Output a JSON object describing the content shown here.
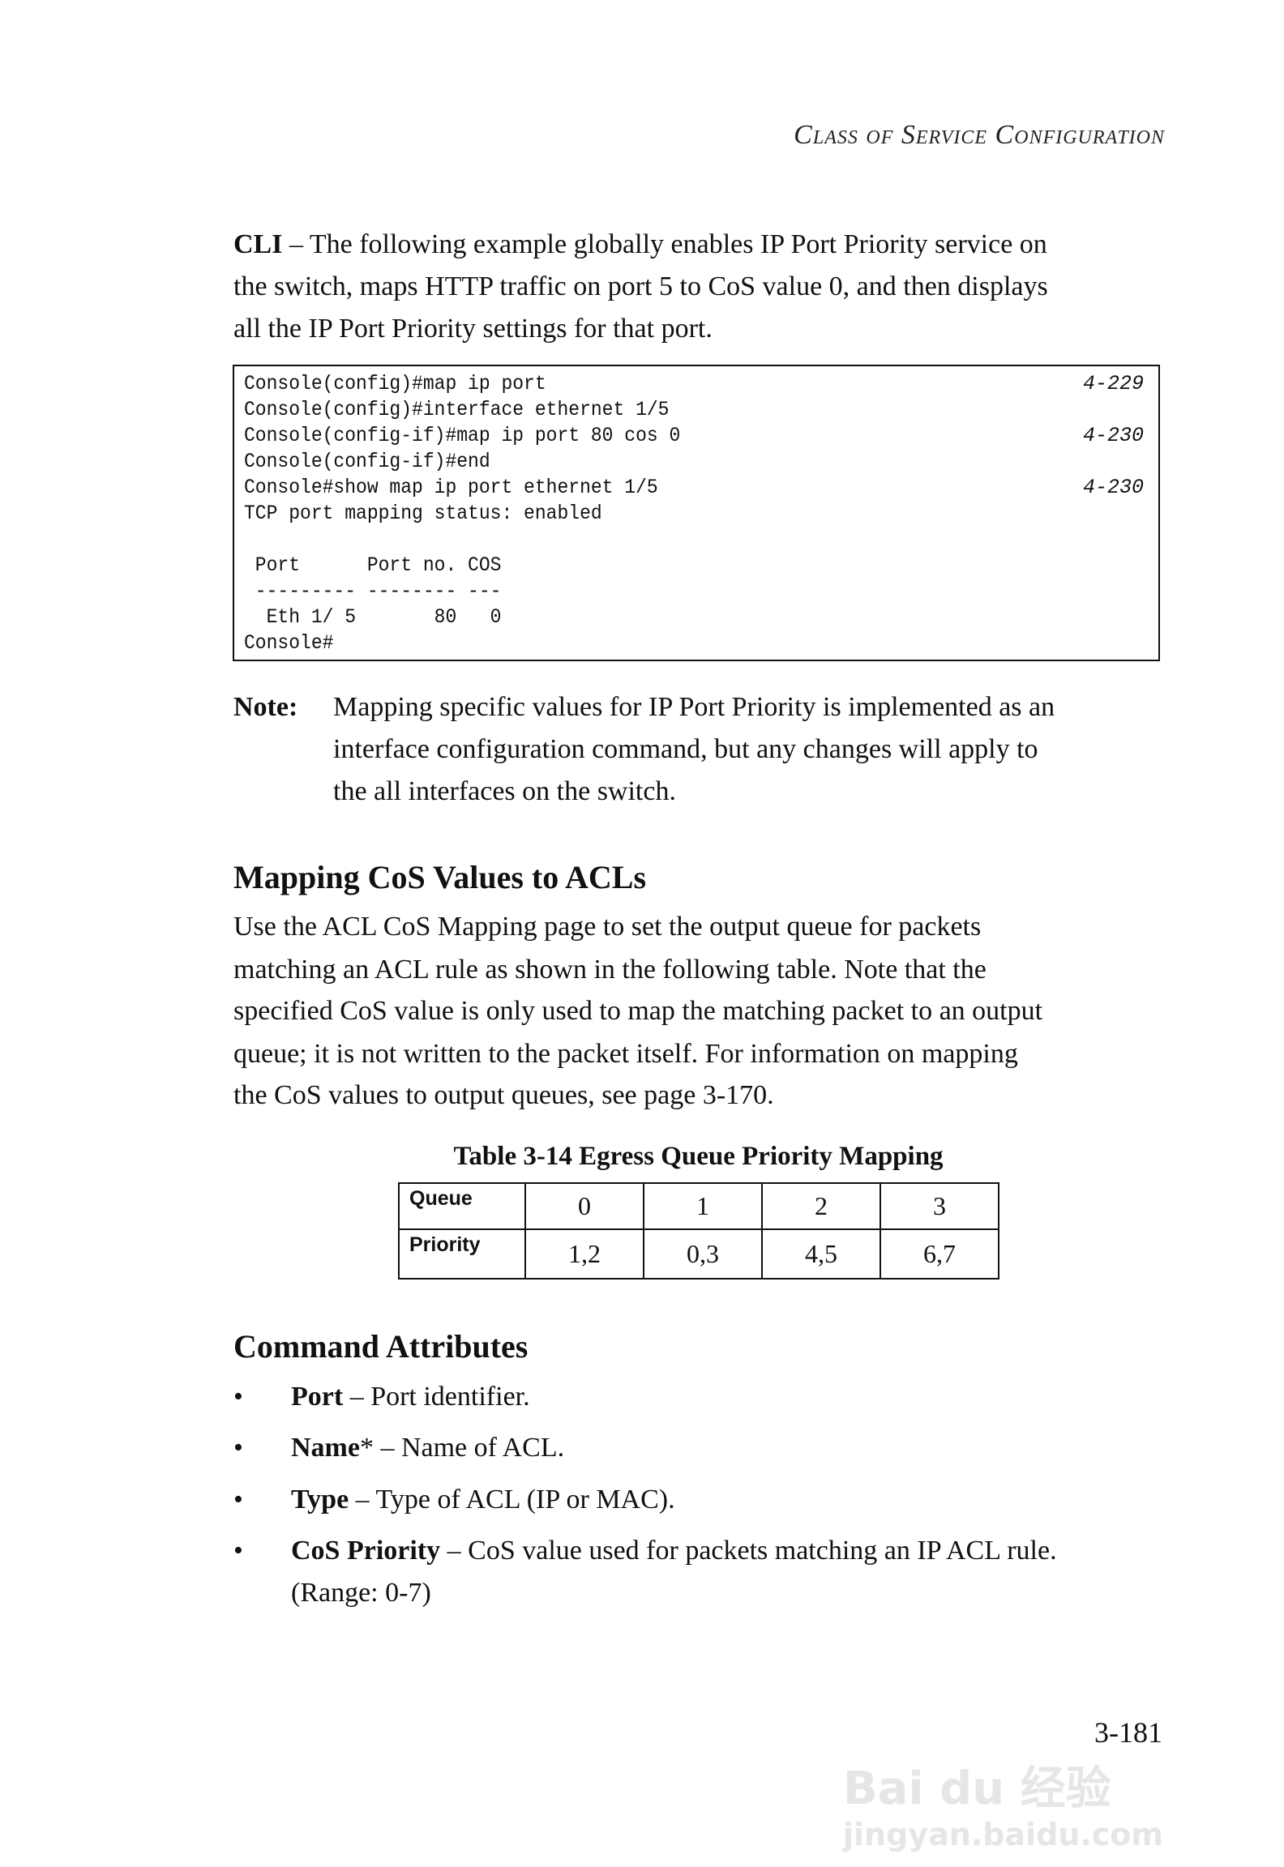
{
  "header": {
    "title": "Class of Service Configuration"
  },
  "cli_paragraph": {
    "label": "CLI",
    "lines": [
      " – The following example globally enables IP Port Priority service on",
      "the switch, maps HTTP traffic on port 5 to CoS value 0, and then displays",
      "all the IP Port Priority settings for that port."
    ]
  },
  "code_block": {
    "lines": [
      {
        "text": "Console(config)#map ip port",
        "ref": "4-229"
      },
      {
        "text": "Console(config)#interface ethernet 1/5",
        "ref": ""
      },
      {
        "text": "Console(config-if)#map ip port 80 cos 0",
        "ref": "4-230"
      },
      {
        "text": "Console(config-if)#end",
        "ref": ""
      },
      {
        "text": "Console#show map ip port ethernet 1/5",
        "ref": "4-230"
      },
      {
        "text": "TCP port mapping status: enabled",
        "ref": ""
      },
      {
        "text": "",
        "ref": ""
      },
      {
        "text": " Port      Port no. COS",
        "ref": ""
      },
      {
        "text": " --------- -------- ---",
        "ref": ""
      },
      {
        "text": "  Eth 1/ 5       80   0",
        "ref": ""
      },
      {
        "text": "Console#",
        "ref": ""
      }
    ]
  },
  "note": {
    "label": "Note:",
    "lines": [
      "Mapping specific values for IP Port Priority is implemented as an",
      "interface configuration command, but any changes will apply to",
      "the all interfaces on the switch."
    ]
  },
  "section": {
    "title": "Mapping CoS Values to ACLs",
    "lines": [
      "Use the ACL CoS Mapping page to set the output queue for packets",
      "matching an ACL rule as shown in the following table. Note that the",
      "specified CoS value is only used to map the matching packet to an output",
      "queue; it is not written to the packet itself. For information on mapping",
      "the CoS values to output queues, see page 3-170."
    ]
  },
  "table": {
    "caption": "Table 3-14  Egress Queue Priority Mapping",
    "rows": [
      {
        "header": "Queue",
        "cells": [
          "0",
          "1",
          "2",
          "3"
        ]
      },
      {
        "header": "Priority",
        "cells": [
          "1,2",
          "0,3",
          "4,5",
          "6,7"
        ]
      }
    ]
  },
  "attributes": {
    "title": "Command Attributes",
    "bullet": "•",
    "items": [
      {
        "term": "Port",
        "desc": " – Port identifier."
      },
      {
        "term": "Name",
        "mark": "*",
        "desc": " – Name of ACL."
      },
      {
        "term": "Type",
        "desc": " – Type of ACL (IP or MAC)."
      },
      {
        "term": "CoS Priority",
        "desc": " – CoS value used for packets matching an IP ACL rule."
      }
    ],
    "continuation": "(Range: 0-7)"
  },
  "page_number": "3-181",
  "watermark": {
    "logo": "Bai du 经验",
    "url": "jingyan.baidu.com"
  }
}
